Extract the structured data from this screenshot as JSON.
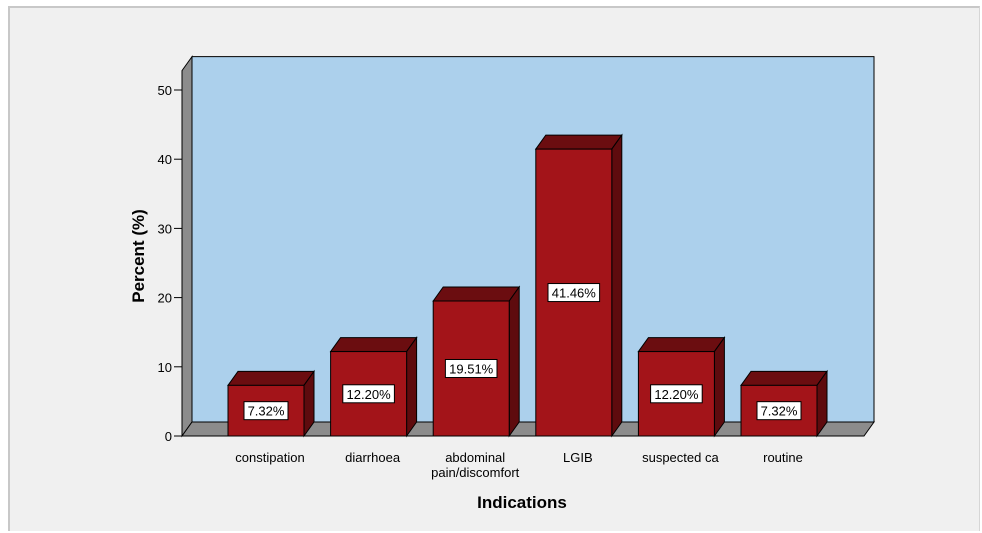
{
  "chart_data": {
    "type": "bar",
    "style": "3d",
    "xlabel": "Indications",
    "ylabel": "Percent (%)",
    "categories": [
      [
        "constipation"
      ],
      [
        "diarrhoea"
      ],
      [
        "abdominal",
        "pain/discomfort"
      ],
      [
        "LGIB"
      ],
      [
        "suspected ca"
      ],
      [
        "routine"
      ]
    ],
    "values": [
      7.32,
      12.2,
      19.51,
      41.46,
      12.2,
      7.32
    ],
    "data_labels": [
      "7.32%",
      "12.20%",
      "19.51%",
      "41.46%",
      "12.20%",
      "7.32%"
    ],
    "ylim": [
      0,
      50
    ],
    "yticks": [
      0,
      10,
      20,
      30,
      40,
      50
    ],
    "grid": false,
    "legend": "none",
    "colors": {
      "bar_front": "#a31419",
      "bar_top": "#6b0d10",
      "bar_side": "#5e0b0e",
      "plot_back": "#acd0ec",
      "plot_side_wall": "#8c8c8c",
      "plot_floor": "#8c8c8c"
    }
  }
}
